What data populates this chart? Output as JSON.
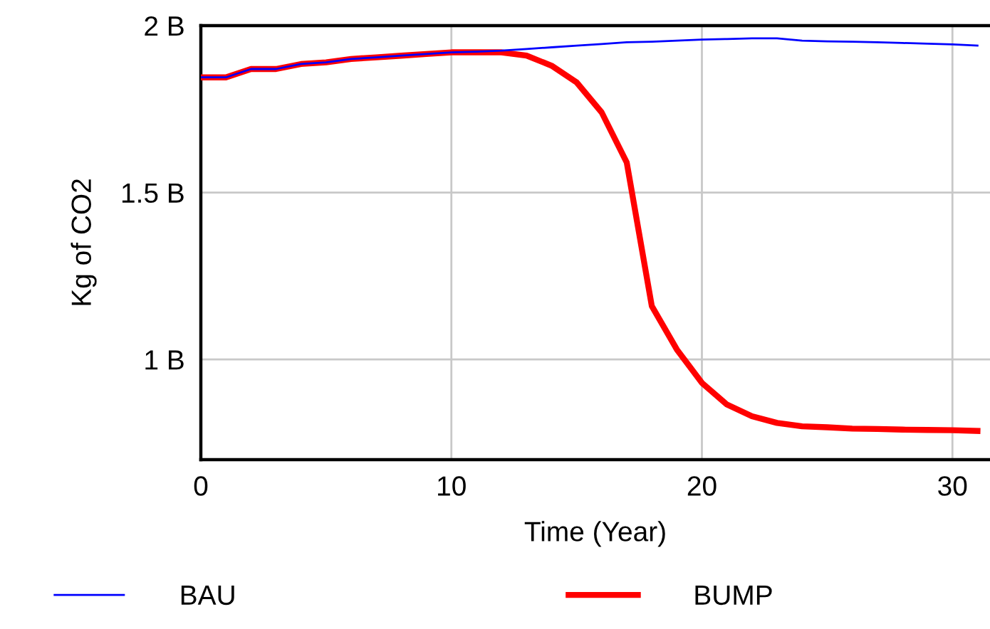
{
  "chart_data": {
    "type": "line",
    "xlabel": "Time (Year)",
    "ylabel": "Kg of CO2",
    "x": [
      0,
      1,
      2,
      3,
      4,
      5,
      6,
      7,
      8,
      9,
      10,
      11,
      12,
      13,
      14,
      15,
      16,
      17,
      18,
      19,
      20,
      21,
      22,
      23,
      24,
      25,
      26,
      27,
      28,
      29,
      30,
      31
    ],
    "series": [
      {
        "name": "BAU",
        "color": "#0000ff",
        "values": [
          1.845,
          1.845,
          1.87,
          1.87,
          1.885,
          1.89,
          1.9,
          1.905,
          1.91,
          1.915,
          1.92,
          1.922,
          1.925,
          1.93,
          1.935,
          1.94,
          1.945,
          1.95,
          1.952,
          1.955,
          1.958,
          1.96,
          1.962,
          1.962,
          1.955,
          1.953,
          1.952,
          1.95,
          1.948,
          1.946,
          1.944,
          1.94
        ]
      },
      {
        "name": "BUMP",
        "color": "#ff0000",
        "values": [
          1.845,
          1.845,
          1.87,
          1.87,
          1.885,
          1.89,
          1.9,
          1.905,
          1.91,
          1.915,
          1.92,
          1.92,
          1.92,
          1.91,
          1.88,
          1.83,
          1.74,
          1.59,
          1.16,
          1.03,
          0.93,
          0.865,
          0.83,
          0.81,
          0.8,
          0.797,
          0.793,
          0.792,
          0.79,
          0.789,
          0.788,
          0.786
        ]
      }
    ],
    "xlim": [
      0,
      31.5
    ],
    "xticks": [
      0,
      10,
      20,
      30
    ],
    "ylim": [
      0.7,
      2
    ],
    "yticks": [
      {
        "value": 1,
        "label": "1 B"
      },
      {
        "value": 1.5,
        "label": "1.5 B"
      },
      {
        "value": 2,
        "label": "2 B"
      }
    ],
    "grid": true,
    "legend": "bottom",
    "marker": "none",
    "line_style": "solid"
  }
}
